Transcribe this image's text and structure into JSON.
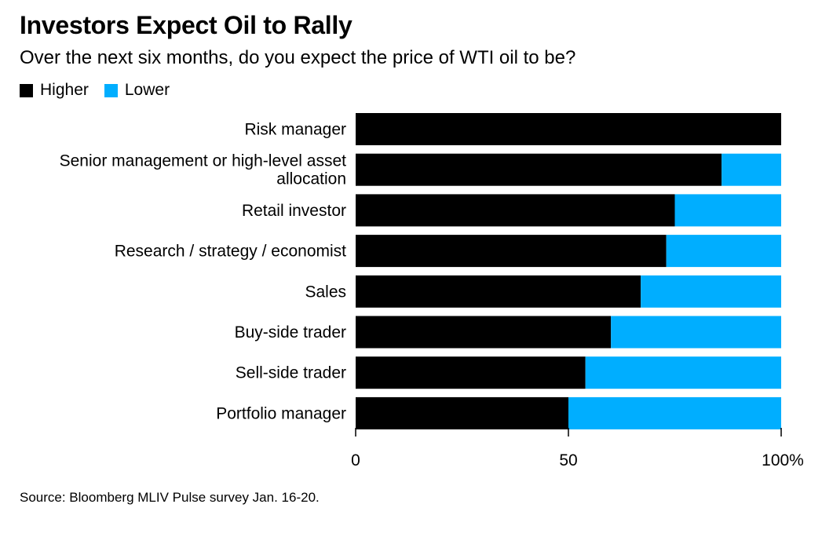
{
  "title": "Investors Expect Oil to Rally",
  "subtitle": "Over the next six months, do you expect the price of WTI oil to be?",
  "legend": {
    "higher_label": "Higher",
    "lower_label": "Lower"
  },
  "source": "Source: Bloomberg MLIV Pulse survey Jan. 16-20.",
  "colors": {
    "higher": "#000000",
    "lower": "#00aeff"
  },
  "chart_data": {
    "type": "bar",
    "orientation": "horizontal",
    "stacked": true,
    "categories": [
      [
        "Risk manager"
      ],
      [
        "Senior management or high-level asset",
        "allocation"
      ],
      [
        "Retail investor"
      ],
      [
        "Research / strategy / economist"
      ],
      [
        "Sales"
      ],
      [
        "Buy-side trader"
      ],
      [
        "Sell-side trader"
      ],
      [
        "Portfolio manager"
      ]
    ],
    "series": [
      {
        "name": "Higher",
        "values": [
          100,
          86,
          75,
          73,
          67,
          60,
          54,
          50
        ]
      },
      {
        "name": "Lower",
        "values": [
          0,
          14,
          25,
          27,
          33,
          40,
          46,
          50
        ]
      }
    ],
    "xlim": [
      0,
      100
    ],
    "xticks": [
      "0",
      "50",
      "100%"
    ],
    "legend_position": "top-left",
    "grid": false
  }
}
